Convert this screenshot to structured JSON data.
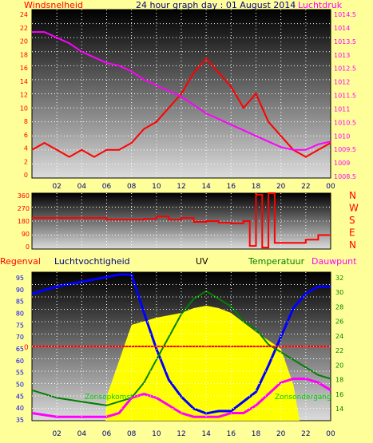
{
  "top": {
    "title": "24 hour graph day : 01 August 2014",
    "left_label": "Windsnelheid",
    "right_label": "Luchtdruk",
    "x_ticks": [
      "02",
      "04",
      "06",
      "08",
      "10",
      "12",
      "14",
      "16",
      "18",
      "20",
      "22",
      "00"
    ],
    "y_left_ticks": [
      "0",
      "2",
      "4",
      "6",
      "8",
      "10",
      "12",
      "14",
      "16",
      "18",
      "20",
      "22",
      "24"
    ],
    "y_right_ticks": [
      "1008.5",
      "1009",
      "1009.5",
      "1010",
      "1010.5",
      "1011",
      "1011.5",
      "1012",
      "1012.5",
      "1013",
      "1013.5",
      "1014",
      "1014.5"
    ]
  },
  "middle": {
    "y_ticks": [
      "0",
      "90",
      "180",
      "270",
      "360"
    ],
    "compass": [
      "N",
      "W",
      "S",
      "E",
      "N"
    ]
  },
  "bottom": {
    "labels": {
      "rain": "Regenval",
      "humidity": "Luchtvochtigheid",
      "uv": "UV",
      "temperature": "Temperatuur",
      "dewpoint": "Dauwpunt",
      "sunrise": "Zonsopkomst",
      "sunset": "Zonsondergang"
    },
    "rain_value": "0",
    "x_ticks": [
      "02",
      "04",
      "06",
      "08",
      "10",
      "12",
      "14",
      "16",
      "18",
      "20",
      "22",
      "00"
    ],
    "y_left_ticks": [
      "35",
      "40",
      "45",
      "50",
      "55",
      "60",
      "65",
      "70",
      "75",
      "80",
      "85",
      "90",
      "95"
    ],
    "y_right_ticks": [
      "14",
      "16",
      "18",
      "20",
      "22",
      "24",
      "26",
      "28",
      "30",
      "32"
    ]
  },
  "colors": {
    "background": "#ffff99",
    "wind_gust": "#ff0000",
    "wind_avg": "#0000ff",
    "pressure": "#ff00ff",
    "direction": "#ff0000",
    "humidity": "#0000ff",
    "temperature": "#008000",
    "dewpoint": "#ff00ff",
    "uv": "#ffff00",
    "solar": "#000000",
    "rain": "#ff0000",
    "label_red": "#ff0000",
    "label_navy": "#000080",
    "label_green": "#008000"
  },
  "chart_data": [
    {
      "type": "line",
      "x_unit": "hour",
      "x_range": [
        0,
        24
      ],
      "ylim": [
        0,
        24
      ],
      "y2lim": [
        1008.5,
        1014.5
      ],
      "series": [
        {
          "name": "Windsnelheid",
          "axis": "left",
          "x": [
            0,
            1,
            2,
            3,
            4,
            5,
            6,
            7,
            8,
            9,
            10,
            11,
            12,
            13,
            14,
            15,
            16,
            17,
            18,
            19,
            20,
            21,
            22,
            23,
            24
          ],
          "values": [
            4,
            5,
            4,
            3,
            4,
            3,
            4,
            4,
            5,
            7,
            8,
            10,
            12,
            15,
            17,
            15,
            13,
            10,
            12,
            8,
            6,
            4,
            3,
            4,
            5
          ]
        },
        {
          "name": "Luchtdruk",
          "axis": "right",
          "x": [
            0,
            1,
            2,
            3,
            4,
            5,
            6,
            7,
            8,
            9,
            10,
            11,
            12,
            13,
            14,
            15,
            16,
            17,
            18,
            19,
            20,
            21,
            22,
            23,
            24
          ],
          "values": [
            1013.7,
            1013.7,
            1013.5,
            1013.3,
            1013.0,
            1012.8,
            1012.6,
            1012.5,
            1012.3,
            1012.0,
            1011.8,
            1011.6,
            1011.4,
            1011.1,
            1010.8,
            1010.6,
            1010.4,
            1010.2,
            1010.0,
            1009.8,
            1009.6,
            1009.5,
            1009.5,
            1009.7,
            1009.8
          ]
        }
      ]
    },
    {
      "type": "line",
      "x_unit": "hour",
      "x_range": [
        0,
        24
      ],
      "ylim": [
        0,
        360
      ],
      "series": [
        {
          "x": [
            0,
            3,
            6,
            9,
            10,
            11,
            12,
            13,
            14,
            15,
            16,
            17,
            17.5,
            18,
            18.5,
            19,
            19.5,
            22,
            23,
            24
          ],
          "values": [
            200,
            200,
            190,
            195,
            210,
            190,
            200,
            175,
            180,
            170,
            165,
            180,
            20,
            350,
            10,
            360,
            40,
            60,
            90,
            90
          ]
        }
      ]
    },
    {
      "type": "line",
      "x_unit": "hour",
      "x_range": [
        0,
        24
      ],
      "ylim": [
        35,
        97
      ],
      "y2lim": [
        13,
        32.5
      ],
      "series": [
        {
          "name": "Luchtvochtigheid",
          "axis": "left",
          "x": [
            0,
            2,
            4,
            6,
            7,
            8,
            9,
            10,
            11,
            12,
            13,
            14,
            15,
            16,
            17,
            18,
            19,
            20,
            21,
            22,
            23,
            24
          ],
          "values": [
            88,
            91,
            93,
            95,
            96,
            96,
            80,
            65,
            52,
            45,
            40,
            38,
            39,
            39,
            43,
            47,
            58,
            70,
            82,
            88,
            91,
            91
          ]
        },
        {
          "name": "Temperatuur",
          "axis": "right",
          "x": [
            0,
            2,
            4,
            6,
            7,
            8,
            9,
            10,
            11,
            12,
            13,
            14,
            15,
            16,
            17,
            18,
            19,
            20,
            21,
            22,
            23,
            24
          ],
          "values": [
            17,
            16,
            15.5,
            15,
            15.5,
            16,
            18,
            21,
            24,
            27,
            29,
            30,
            29,
            28,
            26,
            25,
            23,
            22,
            21,
            20,
            19,
            18.5
          ]
        },
        {
          "name": "Dauwpunt",
          "axis": "right",
          "x": [
            0,
            2,
            4,
            6,
            7,
            8,
            9,
            10,
            11,
            12,
            13,
            14,
            15,
            16,
            17,
            18,
            19,
            20,
            21,
            22,
            23,
            24
          ],
          "values": [
            14,
            13.5,
            13.5,
            13.5,
            14,
            16,
            16.5,
            16,
            15,
            14,
            13.5,
            13.5,
            13.5,
            14,
            14,
            15,
            16.5,
            18,
            18.5,
            18.5,
            18,
            17
          ]
        },
        {
          "name": "UV",
          "axis": "left",
          "x": [
            0,
            5.9,
            6,
            8,
            10,
            12,
            13,
            14,
            15,
            16,
            18,
            20,
            21,
            21.5,
            22,
            24
          ],
          "values": [
            35,
            35,
            45,
            75,
            78,
            80,
            82,
            83,
            82,
            80,
            72,
            65,
            50,
            35,
            35,
            35
          ]
        },
        {
          "name": "Regenval",
          "axis": "left",
          "x": [
            0,
            24
          ],
          "values": [
            66,
            66
          ]
        }
      ],
      "annotations": [
        "Zonsopkomst",
        "Zonsondergang"
      ]
    }
  ]
}
